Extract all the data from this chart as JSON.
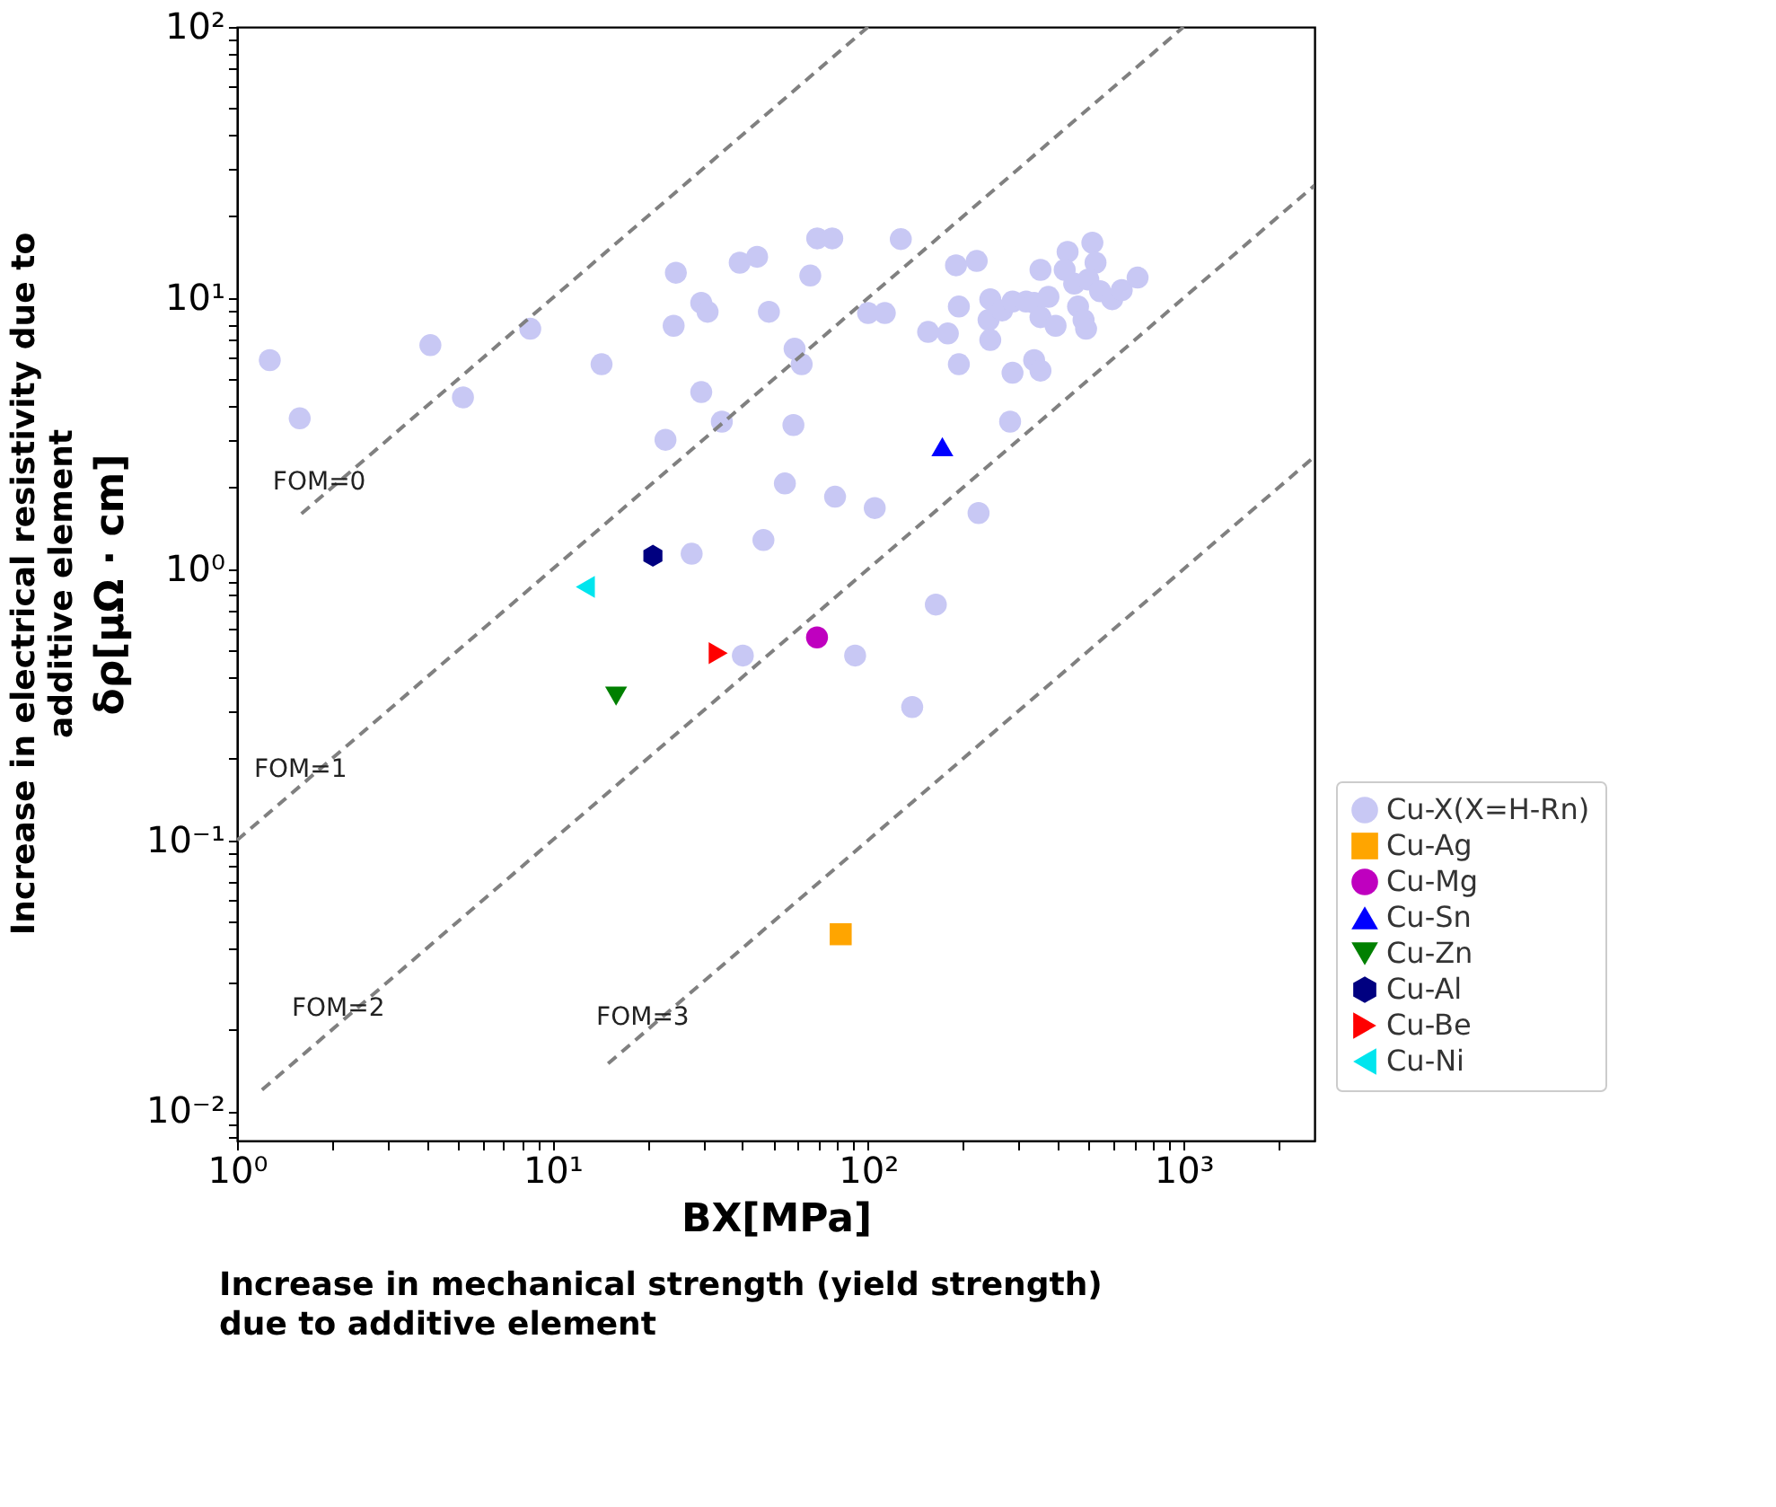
{
  "chart_data": {
    "type": "scatter",
    "xlabel": "BX[MPa]",
    "ylabel": "δρ[μΩ · cm]",
    "log": "xy",
    "grid": false,
    "legend": "bottom right",
    "xlim": [
      1,
      2600
    ],
    "ylim": [
      0.0078,
      100
    ],
    "xticks": [
      {
        "value": 1,
        "label": "10⁰"
      },
      {
        "value": 2,
        "label": null
      },
      {
        "value": 3,
        "label": null
      },
      {
        "value": 4,
        "label": null
      },
      {
        "value": 5,
        "label": null
      },
      {
        "value": 6,
        "label": null
      },
      {
        "value": 7,
        "label": null
      },
      {
        "value": 8,
        "label": null
      },
      {
        "value": 9,
        "label": null
      },
      {
        "value": 10,
        "label": "10¹"
      },
      {
        "value": 20,
        "label": null
      },
      {
        "value": 30,
        "label": null
      },
      {
        "value": 40,
        "label": null
      },
      {
        "value": 50,
        "label": null
      },
      {
        "value": 60,
        "label": null
      },
      {
        "value": 70,
        "label": null
      },
      {
        "value": 80,
        "label": null
      },
      {
        "value": 90,
        "label": null
      },
      {
        "value": 100,
        "label": "10²"
      },
      {
        "value": 200,
        "label": null
      },
      {
        "value": 300,
        "label": null
      },
      {
        "value": 400,
        "label": null
      },
      {
        "value": 500,
        "label": null
      },
      {
        "value": 600,
        "label": null
      },
      {
        "value": 700,
        "label": null
      },
      {
        "value": 800,
        "label": null
      },
      {
        "value": 900,
        "label": null
      },
      {
        "value": 1000,
        "label": "10³"
      },
      {
        "value": 2000,
        "label": null
      }
    ],
    "yticks": [
      {
        "value": 0.008,
        "label": null
      },
      {
        "value": 0.009,
        "label": null
      },
      {
        "value": 0.01,
        "label": "10⁻²"
      },
      {
        "value": 0.02,
        "label": null
      },
      {
        "value": 0.03,
        "label": null
      },
      {
        "value": 0.04,
        "label": null
      },
      {
        "value": 0.05,
        "label": null
      },
      {
        "value": 0.06,
        "label": null
      },
      {
        "value": 0.07,
        "label": null
      },
      {
        "value": 0.08,
        "label": null
      },
      {
        "value": 0.09,
        "label": null
      },
      {
        "value": 0.1,
        "label": "10⁻¹"
      },
      {
        "value": 0.2,
        "label": null
      },
      {
        "value": 0.3,
        "label": null
      },
      {
        "value": 0.4,
        "label": null
      },
      {
        "value": 0.5,
        "label": null
      },
      {
        "value": 0.6,
        "label": null
      },
      {
        "value": 0.7,
        "label": null
      },
      {
        "value": 0.8,
        "label": null
      },
      {
        "value": 0.9,
        "label": null
      },
      {
        "value": 1,
        "label": "10⁰"
      },
      {
        "value": 2,
        "label": null
      },
      {
        "value": 3,
        "label": null
      },
      {
        "value": 4,
        "label": null
      },
      {
        "value": 5,
        "label": null
      },
      {
        "value": 6,
        "label": null
      },
      {
        "value": 7,
        "label": null
      },
      {
        "value": 8,
        "label": null
      },
      {
        "value": 9,
        "label": null
      },
      {
        "value": 10,
        "label": "10¹"
      },
      {
        "value": 20,
        "label": null
      },
      {
        "value": 30,
        "label": null
      },
      {
        "value": 40,
        "label": null
      },
      {
        "value": 50,
        "label": null
      },
      {
        "value": 60,
        "label": null
      },
      {
        "value": 70,
        "label": null
      },
      {
        "value": 80,
        "label": null
      },
      {
        "value": 90,
        "label": null
      },
      {
        "value": 100,
        "label": "10²"
      }
    ],
    "series": [
      {
        "name": "FOM=0",
        "type": "line",
        "color": "#808080",
        "line_style": "dashed",
        "x": [
          1.6,
          100
        ],
        "values": [
          1.6,
          100
        ]
      },
      {
        "name": "FOM=1",
        "type": "line",
        "color": "#808080",
        "line_style": "dashed",
        "x": [
          1,
          1000
        ],
        "values": [
          0.1,
          100
        ]
      },
      {
        "name": "FOM=2",
        "type": "line",
        "color": "#808080",
        "line_style": "dashed",
        "x": [
          1.2,
          2600
        ],
        "values": [
          0.012,
          26
        ]
      },
      {
        "name": "FOM=3",
        "type": "line",
        "color": "#808080",
        "line_style": "dashed",
        "x": [
          15,
          2600
        ],
        "values": [
          0.015,
          2.6
        ]
      },
      {
        "name": "Cu-X(X=H-Rn)",
        "color": "#c8c8f4",
        "marker": "circle",
        "x": [
          1.27,
          1.58,
          4.1,
          5.2,
          8.5,
          14.3,
          24.6,
          24.2,
          22.8,
          29.6,
          31,
          29.6,
          34.4,
          39.2,
          44.5,
          48.5,
          65.6,
          69,
          77,
          58.5,
          61.6,
          58,
          54.5,
          78.6,
          105,
          46.6,
          27.6,
          127,
          100,
          113,
          155,
          179,
          194,
          194,
          190,
          221,
          224,
          244,
          241,
          244,
          266,
          287,
          287,
          282,
          317,
          336,
          352,
          352,
          336,
          352,
          373,
          393,
          429,
          420,
          450,
          463,
          482,
          491,
          514,
          526,
          499,
          544,
          594,
          637,
          715,
          164,
          40.1,
          91,
          138
        ],
        "values": [
          5.9,
          3.6,
          6.7,
          4.3,
          7.7,
          5.7,
          12.4,
          7.9,
          3.0,
          9.6,
          8.9,
          4.5,
          3.5,
          13.5,
          14.2,
          8.9,
          12.1,
          16.6,
          16.6,
          6.5,
          5.7,
          3.4,
          2.07,
          1.85,
          1.68,
          1.28,
          1.14,
          16.5,
          8.8,
          8.8,
          7.5,
          7.4,
          5.7,
          9.3,
          13.2,
          13.7,
          1.61,
          9.9,
          8.3,
          7.0,
          9.0,
          9.7,
          5.3,
          3.5,
          9.7,
          9.6,
          12.7,
          8.5,
          5.9,
          5.4,
          10.1,
          7.9,
          14.8,
          12.7,
          11.3,
          9.3,
          8.3,
          7.7,
          16,
          13.5,
          11.7,
          10.6,
          9.9,
          10.7,
          11.9,
          0.74,
          0.48,
          0.48,
          0.31
        ]
      },
      {
        "name": "Cu-Ag",
        "color": "#ffa500",
        "marker": "square",
        "x": [
          81.9
        ],
        "values": [
          0.045
        ]
      },
      {
        "name": "Cu-Mg",
        "color": "#bf00bf",
        "marker": "circle",
        "x": [
          68.9
        ],
        "values": [
          0.56
        ]
      },
      {
        "name": "Cu-Sn",
        "color": "#0000ff",
        "marker": "triangle-up",
        "x": [
          172
        ],
        "values": [
          2.83
        ]
      },
      {
        "name": "Cu-Zn",
        "color": "#008000",
        "marker": "triangle-down",
        "x": [
          15.9
        ],
        "values": [
          0.34
        ]
      },
      {
        "name": "Cu-Al",
        "color": "#000080",
        "x": [
          20.8
        ],
        "values": [
          1.12
        ]
      },
      {
        "name": "Cu-Be",
        "color": "#ff0000",
        "marker": "triangle-right",
        "x": [
          33.5
        ],
        "values": [
          0.49
        ]
      },
      {
        "name": "Cu-Ni",
        "color": "#00e5ee",
        "marker": "triangle-left",
        "x": [
          12.7
        ],
        "values": [
          0.86
        ]
      }
    ],
    "annotations": [
      "Increase in electrical resistivity due to additive element",
      "Increase in mechanical strength (yield strength) due to additive element"
    ]
  }
}
